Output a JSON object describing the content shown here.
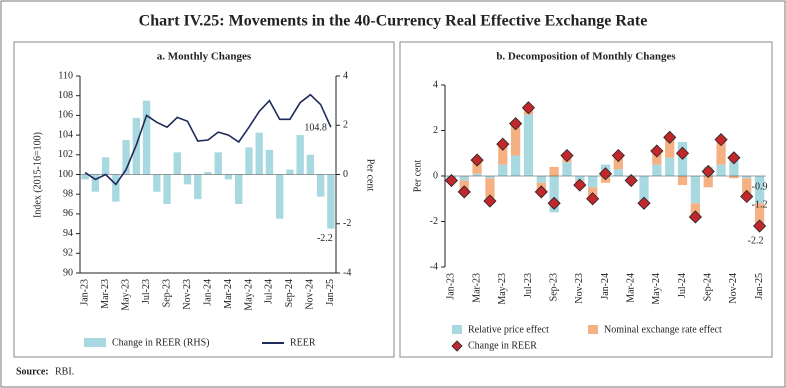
{
  "title": "Chart IV.25: Movements in the 40-Currency Real Effective Exchange Rate",
  "source_label": "Source:",
  "source": "RBI.",
  "chart_data": [
    {
      "type": "bar_line",
      "title": "a. Monthly Changes",
      "ylabel": "Index (2015-16=100)",
      "y2label": "Per cent",
      "categories": [
        "Jan-23",
        null,
        "Mar-23",
        null,
        "May-23",
        null,
        "Jul-23",
        null,
        "Sep-23",
        null,
        "Nov-23",
        null,
        "Jan-24",
        null,
        "Mar-24",
        null,
        "May-24",
        null,
        "Jul-24",
        null,
        "Sep-24",
        null,
        "Nov-24",
        null,
        "Jan-25"
      ],
      "series": [
        {
          "name": "Change in REER (RHS)",
          "type": "bar",
          "axis": "y2",
          "color": "#a9d9e0",
          "values": [
            -0.2,
            -0.7,
            0.7,
            -1.1,
            1.4,
            2.3,
            3.0,
            -0.7,
            -1.2,
            0.9,
            -0.4,
            -1.0,
            0.1,
            0.9,
            -0.2,
            -1.2,
            1.1,
            1.7,
            1.0,
            -1.8,
            0.2,
            1.6,
            0.8,
            -0.9,
            -2.2
          ]
        },
        {
          "name": "REER",
          "type": "line",
          "color": "#1f2a5a",
          "values": [
            100.2,
            99.5,
            100.0,
            99.0,
            100.5,
            103.0,
            106.0,
            105.3,
            104.8,
            105.8,
            105.4,
            103.4,
            103.5,
            104.3,
            104.0,
            103.3,
            104.8,
            106.4,
            107.5,
            105.6,
            105.6,
            107.3,
            108.1,
            107.1,
            104.8
          ]
        }
      ],
      "ylim": [
        90,
        110
      ],
      "yticks": [
        90,
        92,
        94,
        96,
        98,
        100,
        102,
        104,
        106,
        108,
        110
      ],
      "y2lim": [
        -4,
        4
      ],
      "y2ticks": [
        -4,
        -2,
        0,
        2,
        4
      ]
    },
    {
      "type": "stacked_bar",
      "title": "b. Decomposition of Monthly Changes",
      "ylabel": "Per cent",
      "categories": [
        "Jan-23",
        null,
        "Mar-23",
        null,
        "May-23",
        null,
        "Jul-23",
        null,
        "Sep-23",
        null,
        "Nov-23",
        null,
        "Jan-24",
        null,
        "Mar-24",
        null,
        "May-24",
        null,
        "Jul-24",
        null,
        "Sep-24",
        null,
        "Nov-24",
        null,
        "Jan-25"
      ],
      "series": [
        {
          "name": "Relative price effect",
          "type": "bar",
          "color": "#a9d9e0",
          "values": [
            -0.1,
            -0.2,
            0.1,
            -0.1,
            0.5,
            0.9,
            2.7,
            -0.3,
            -1.6,
            0.6,
            -0.2,
            -0.5,
            0.5,
            0.3,
            -0.2,
            -1.1,
            0.5,
            0.8,
            1.5,
            -1.2,
            0.4,
            0.5,
            0.9,
            -0.1,
            -1.2
          ]
        },
        {
          "name": "Nominal exchange rate effect",
          "type": "bar",
          "color": "#f5b184",
          "values": [
            -0.1,
            -0.5,
            0.6,
            -0.9,
            0.9,
            1.3,
            0.4,
            -0.4,
            0.4,
            0.4,
            -0.2,
            -0.5,
            -0.3,
            0.6,
            -0.1,
            -0.1,
            0.6,
            0.9,
            -0.4,
            -0.6,
            -0.5,
            1.1,
            -0.1,
            -0.8,
            -0.9
          ]
        },
        {
          "name": "Change in REER",
          "type": "marker",
          "color": "#c0282d",
          "values": [
            -0.2,
            -0.7,
            0.7,
            -1.1,
            1.4,
            2.3,
            3.0,
            -0.7,
            -1.2,
            0.9,
            -0.4,
            -1.0,
            0.1,
            0.9,
            -0.2,
            -1.2,
            1.1,
            1.7,
            1.0,
            -1.8,
            0.2,
            1.6,
            0.8,
            -0.9,
            -2.2
          ]
        }
      ],
      "ylim": [
        -4,
        4
      ],
      "yticks": [
        -4,
        -2,
        0,
        2,
        4
      ]
    }
  ]
}
